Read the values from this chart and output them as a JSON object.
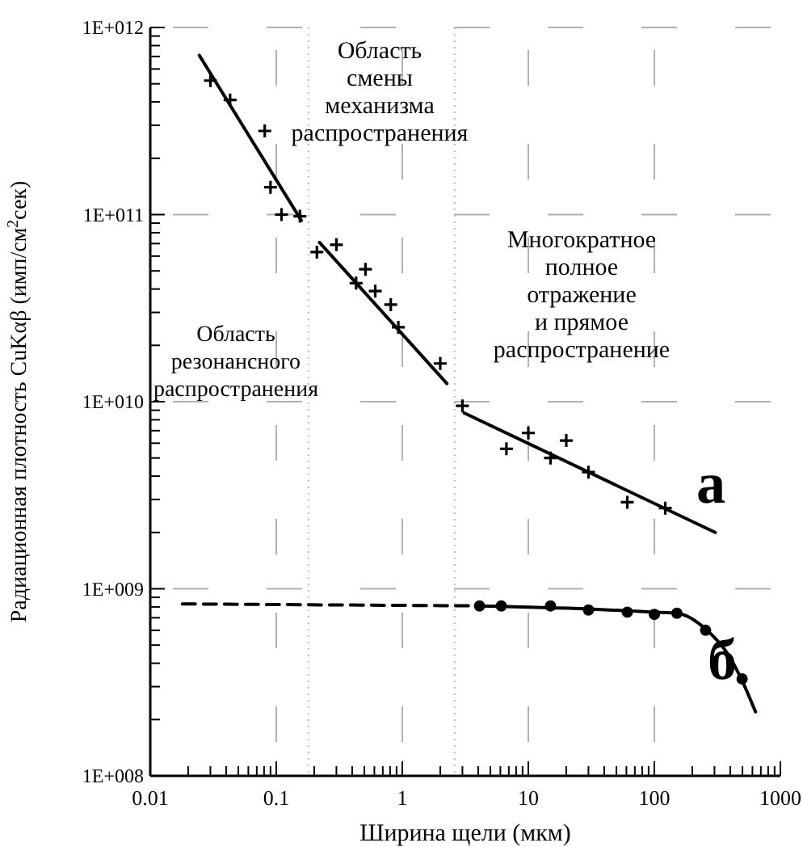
{
  "chart_data": {
    "type": "scatter",
    "xlabel": "Ширина щели (мкм)",
    "ylabel": "Радиационная плотность CuKαβ (имп/см$^{2}$сек)",
    "log": "xy",
    "grid": true,
    "xlim": [
      0.01,
      1000
    ],
    "ylim": [
      100000000.0,
      1000000000000.0
    ],
    "xticks": [
      {
        "value": 0.01,
        "label": "0.01"
      },
      {
        "value": 0.02,
        "label": null
      },
      {
        "value": 0.03,
        "label": null
      },
      {
        "value": 0.04,
        "label": null
      },
      {
        "value": 0.05,
        "label": null
      },
      {
        "value": 0.06,
        "label": null
      },
      {
        "value": 0.07,
        "label": null
      },
      {
        "value": 0.08,
        "label": null
      },
      {
        "value": 0.09,
        "label": null
      },
      {
        "value": 0.1,
        "label": "0.1"
      },
      {
        "value": 0.2,
        "label": null
      },
      {
        "value": 0.3,
        "label": null
      },
      {
        "value": 0.4,
        "label": null
      },
      {
        "value": 0.5,
        "label": null
      },
      {
        "value": 0.6,
        "label": null
      },
      {
        "value": 0.7,
        "label": null
      },
      {
        "value": 0.8,
        "label": null
      },
      {
        "value": 0.9,
        "label": null
      },
      1,
      {
        "value": 2,
        "label": null
      },
      {
        "value": 3,
        "label": null
      },
      {
        "value": 4,
        "label": null
      },
      {
        "value": 5,
        "label": null
      },
      {
        "value": 6,
        "label": null
      },
      {
        "value": 7,
        "label": null
      },
      {
        "value": 8,
        "label": null
      },
      {
        "value": 9,
        "label": null
      },
      10,
      {
        "value": 20,
        "label": null
      },
      {
        "value": 30,
        "label": null
      },
      {
        "value": 40,
        "label": null
      },
      {
        "value": 50,
        "label": null
      },
      {
        "value": 60,
        "label": null
      },
      {
        "value": 70,
        "label": null
      },
      {
        "value": 80,
        "label": null
      },
      {
        "value": 90,
        "label": null
      },
      100,
      {
        "value": 200,
        "label": null
      },
      {
        "value": 300,
        "label": null
      },
      {
        "value": 400,
        "label": null
      },
      {
        "value": 500,
        "label": null
      },
      {
        "value": 600,
        "label": null
      },
      {
        "value": 700,
        "label": null
      },
      {
        "value": 800,
        "label": null
      },
      {
        "value": 900,
        "label": null
      },
      1000
    ],
    "yticks": [
      {
        "value": 100000000.0,
        "label": "1E+008"
      },
      {
        "value": 200000000.0,
        "label": null
      },
      {
        "value": 300000000.0,
        "label": null
      },
      {
        "value": 400000000.0,
        "label": null
      },
      {
        "value": 500000000.0,
        "label": null
      },
      {
        "value": 600000000.0,
        "label": null
      },
      {
        "value": 700000000.0,
        "label": null
      },
      {
        "value": 800000000.0,
        "label": null
      },
      {
        "value": 900000000.0,
        "label": null
      },
      {
        "value": 1000000000.0,
        "label": "1E+009"
      },
      {
        "value": 2000000000.0,
        "label": null
      },
      {
        "value": 3000000000.0,
        "label": null
      },
      {
        "value": 4000000000.0,
        "label": null
      },
      {
        "value": 5000000000.0,
        "label": null
      },
      {
        "value": 6000000000.0,
        "label": null
      },
      {
        "value": 7000000000.0,
        "label": null
      },
      {
        "value": 8000000000.0,
        "label": null
      },
      {
        "value": 9000000000.0,
        "label": null
      },
      {
        "value": 10000000000.0,
        "label": "1E+010"
      },
      {
        "value": 20000000000.0,
        "label": null
      },
      {
        "value": 30000000000.0,
        "label": null
      },
      {
        "value": 40000000000.0,
        "label": null
      },
      {
        "value": 50000000000.0,
        "label": null
      },
      {
        "value": 60000000000.0,
        "label": null
      },
      {
        "value": 70000000000.0,
        "label": null
      },
      {
        "value": 80000000000.0,
        "label": null
      },
      {
        "value": 90000000000.0,
        "label": null
      },
      {
        "value": 100000000000.0,
        "label": "1E+011"
      },
      {
        "value": 200000000000.0,
        "label": null
      },
      {
        "value": 300000000000.0,
        "label": null
      },
      {
        "value": 400000000000.0,
        "label": null
      },
      {
        "value": 500000000000.0,
        "label": null
      },
      {
        "value": 600000000000.0,
        "label": null
      },
      {
        "value": 700000000000.0,
        "label": null
      },
      {
        "value": 800000000000.0,
        "label": null
      },
      {
        "value": 900000000000.0,
        "label": null
      },
      {
        "value": 1000000000000.0,
        "label": "1E+012"
      }
    ],
    "series": [
      {
        "color": "#000000",
        "marker": "cross",
        "x": [
          0.03,
          0.043,
          0.081,
          0.09,
          0.11,
          0.154,
          0.21,
          0.3,
          0.43,
          0.51,
          0.61,
          0.81,
          0.93,
          2.0,
          3.0,
          6.7,
          10,
          15,
          20,
          30,
          61,
          122
        ],
        "values": [
          520000000000.0,
          410000000000.0,
          280000000000.0,
          140000000000.0,
          100000000000.0,
          98000000000.0,
          63000000000.0,
          69000000000.0,
          43000000000.0,
          51000000000.0,
          39000000000.0,
          33000000000.0,
          25000000000.0,
          16000000000.0,
          9500000000.0,
          5600000000.0,
          6800000000.0,
          5000000000.0,
          6200000000.0,
          4200000000.0,
          2900000000.0,
          2700000000.0
        ]
      },
      {
        "type": "line",
        "color": "#000000",
        "line_style": "solid",
        "x": [
          0.0245,
          0.158
        ],
        "values": [
          710000000000.0,
          93000000000.0
        ]
      },
      {
        "type": "line",
        "color": "#000000",
        "line_style": "solid",
        "x": [
          0.22,
          2.26
        ],
        "values": [
          71000000000.0,
          12500000000.0
        ]
      },
      {
        "type": "line",
        "color": "#000000",
        "line_style": "solid",
        "x": [
          3.1,
          304
        ],
        "values": [
          8700000000.0,
          2000000000.0
        ]
      },
      {
        "color": "#000000",
        "marker": "circle",
        "x": [
          4.1,
          6.1,
          15,
          30,
          61,
          100,
          151,
          255,
          497
        ],
        "values": [
          810000000.0,
          810000000.0,
          810000000.0,
          770000000.0,
          750000000.0,
          730000000.0,
          740000000.0,
          600000000.0,
          330000000.0
        ]
      },
      {
        "type": "line",
        "color": "#000000",
        "line_style": "dashed",
        "x": [
          0.018,
          4.1
        ],
        "values": [
          830000000.0,
          810000000.0
        ]
      },
      {
        "type": "line",
        "color": "#000000",
        "line_style": "solid",
        "x": [
          4.1,
          30,
          100,
          151,
          255,
          389,
          500,
          635
        ],
        "values": [
          810000000.0,
          780000000.0,
          750000000.0,
          740000000.0,
          610000000.0,
          440000000.0,
          320000000.0,
          220000000.0
        ]
      }
    ],
    "ref_lines": [
      {
        "axis": "x",
        "value": 0.18,
        "color": "#bbbbbb",
        "line_style": "dotted"
      },
      {
        "axis": "x",
        "value": 2.6,
        "color": "#bbbbbb",
        "line_style": "dotted"
      }
    ],
    "annotations": [
      "Область\nсмены\nмеханизма\nраспространения",
      "Многократное\nполное\nотражение\nи прямое\nраспространение",
      "Область\nрезонансного\nраспространения",
      "а",
      "б"
    ]
  }
}
